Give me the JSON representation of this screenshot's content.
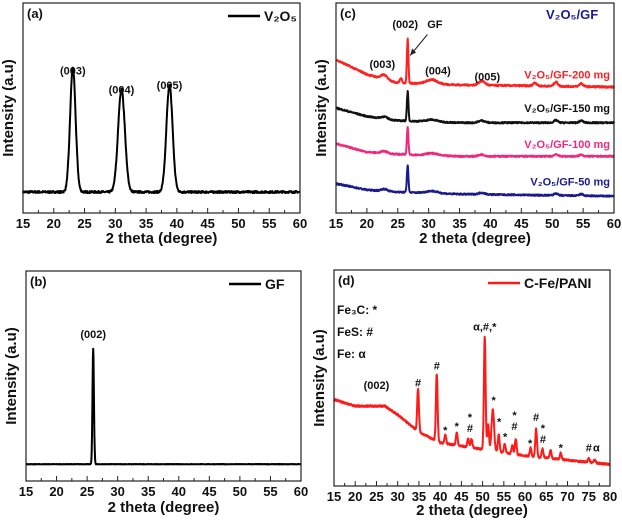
{
  "chart_data": [
    {
      "panel": "(a)",
      "type": "line",
      "xlabel": "2 theta (degree)",
      "ylabel": "Intensity (a.u)",
      "xlim": [
        15,
        60
      ],
      "xticks": [
        15,
        20,
        25,
        30,
        35,
        40,
        45,
        50,
        55,
        60
      ],
      "ylim": [
        0,
        1
      ],
      "grid": false,
      "legend": {
        "placement": "top-right",
        "entries": [
          "V₂O₅"
        ]
      },
      "series": [
        {
          "name": "V₂O₅",
          "color": "#000000",
          "baseline": [
            [
              15,
              0.1
            ],
            [
              60,
              0.1
            ]
          ],
          "peaks": [
            {
              "x": 23.1,
              "y": 0.59,
              "w": 0.45
            },
            {
              "x": 31.0,
              "y": 0.49,
              "w": 0.55
            },
            {
              "x": 38.8,
              "y": 0.51,
              "w": 0.5
            }
          ],
          "noise": 0.01
        }
      ],
      "annotations": [
        {
          "text": "(003)",
          "x": 23.1,
          "y": 0.66
        },
        {
          "text": "(004)",
          "x": 31.0,
          "y": 0.57
        },
        {
          "text": "(005)",
          "x": 38.8,
          "y": 0.59
        }
      ]
    },
    {
      "panel": "(b)",
      "type": "line",
      "xlabel": "2 theta (degree)",
      "ylabel": "Intensity (a.u)",
      "xlim": [
        15,
        60
      ],
      "xticks": [
        15,
        20,
        25,
        30,
        35,
        40,
        45,
        50,
        55,
        60
      ],
      "ylim": [
        0,
        1
      ],
      "grid": false,
      "legend": {
        "placement": "top-right",
        "entries": [
          "GF"
        ]
      },
      "series": [
        {
          "name": "GF",
          "color": "#000000",
          "baseline": [
            [
              15,
              0.08
            ],
            [
              60,
              0.08
            ]
          ],
          "peaks": [
            {
              "x": 26.0,
              "y": 0.55,
              "w": 0.12
            }
          ],
          "noise": 0.002
        }
      ],
      "annotations": [
        {
          "text": "(002)",
          "x": 26.0,
          "y": 0.68
        }
      ]
    },
    {
      "panel": "(c)",
      "type": "line",
      "title": "V₂O₅/GF",
      "title_color": "#1a1a9a",
      "xlabel": "2 theta (degree)",
      "ylabel": "Intensity (a.u)",
      "xlim": [
        15,
        60
      ],
      "xticks": [
        15,
        20,
        25,
        30,
        35,
        40,
        45,
        50,
        55,
        60
      ],
      "ylim": [
        0,
        1
      ],
      "grid": false,
      "series": [
        {
          "name": "V₂O₅/GF-200 mg",
          "color": "#ff2020",
          "label_y": 0.64,
          "baseline": [
            [
              15,
              0.73
            ],
            [
              20,
              0.66
            ],
            [
              25,
              0.62
            ],
            [
              35,
              0.61
            ],
            [
              60,
              0.6
            ]
          ],
          "peaks": [
            {
              "x": 22.8,
              "y": 0.02,
              "w": 0.5
            },
            {
              "x": 25.5,
              "y": 0.02,
              "w": 0.2
            },
            {
              "x": 26.6,
              "y": 0.21,
              "w": 0.12
            },
            {
              "x": 30.5,
              "y": 0.02,
              "w": 0.9
            },
            {
              "x": 38.6,
              "y": 0.02,
              "w": 0.5
            },
            {
              "x": 47.2,
              "y": 0.015,
              "w": 0.3
            },
            {
              "x": 50.6,
              "y": 0.02,
              "w": 0.3
            },
            {
              "x": 54.7,
              "y": 0.015,
              "w": 0.3
            }
          ],
          "noise": 0.008
        },
        {
          "name": "V₂O₅/GF-150 mg",
          "color": "#111111",
          "label_y": 0.48,
          "baseline": [
            [
              15,
              0.5
            ],
            [
              20,
              0.46
            ],
            [
              25,
              0.44
            ],
            [
              35,
              0.43
            ],
            [
              60,
              0.43
            ]
          ],
          "peaks": [
            {
              "x": 22.8,
              "y": 0.01,
              "w": 0.5
            },
            {
              "x": 26.6,
              "y": 0.14,
              "w": 0.12
            },
            {
              "x": 30.5,
              "y": 0.01,
              "w": 0.9
            },
            {
              "x": 38.6,
              "y": 0.01,
              "w": 0.5
            },
            {
              "x": 50.6,
              "y": 0.012,
              "w": 0.3
            },
            {
              "x": 54.7,
              "y": 0.01,
              "w": 0.3
            }
          ],
          "noise": 0.007
        },
        {
          "name": "V₂O₅/GF-100 mg",
          "color": "#f0287c",
          "label_y": 0.31,
          "baseline": [
            [
              15,
              0.33
            ],
            [
              20,
              0.29
            ],
            [
              25,
              0.28
            ],
            [
              35,
              0.27
            ],
            [
              60,
              0.27
            ]
          ],
          "peaks": [
            {
              "x": 22.8,
              "y": 0.01,
              "w": 0.5
            },
            {
              "x": 26.6,
              "y": 0.13,
              "w": 0.12
            },
            {
              "x": 30.5,
              "y": 0.01,
              "w": 0.9
            },
            {
              "x": 38.6,
              "y": 0.008,
              "w": 0.5
            },
            {
              "x": 50.6,
              "y": 0.01,
              "w": 0.3
            },
            {
              "x": 54.7,
              "y": 0.008,
              "w": 0.3
            }
          ],
          "noise": 0.007
        },
        {
          "name": "V₂O₅/GF-50 mg",
          "color": "#1a1a8c",
          "label_y": 0.13,
          "baseline": [
            [
              15,
              0.14
            ],
            [
              20,
              0.11
            ],
            [
              25,
              0.1
            ],
            [
              35,
              0.09
            ],
            [
              60,
              0.08
            ]
          ],
          "peaks": [
            {
              "x": 22.8,
              "y": 0.01,
              "w": 0.5
            },
            {
              "x": 26.6,
              "y": 0.13,
              "w": 0.12
            },
            {
              "x": 30.5,
              "y": 0.01,
              "w": 0.9
            },
            {
              "x": 38.6,
              "y": 0.008,
              "w": 0.5
            },
            {
              "x": 50.6,
              "y": 0.01,
              "w": 0.3
            },
            {
              "x": 54.7,
              "y": 0.008,
              "w": 0.3
            }
          ],
          "noise": 0.007
        }
      ],
      "annotations": [
        {
          "text": "(002)",
          "x": 26.2,
          "y": 0.88
        },
        {
          "text": "GF",
          "x": 31.0,
          "y": 0.88
        },
        {
          "text": "(003)",
          "x": 22.5,
          "y": 0.69
        },
        {
          "text": "(004)",
          "x": 31.5,
          "y": 0.66
        },
        {
          "text": "(005)",
          "x": 39.5,
          "y": 0.63
        }
      ],
      "arrow": {
        "from": [
          29.8,
          0.85
        ],
        "to": [
          27.0,
          0.75
        ]
      }
    },
    {
      "panel": "(d)",
      "type": "line",
      "xlabel": "2 theta (degree)",
      "ylabel": "Intensity (a.u)",
      "xlim": [
        15,
        80
      ],
      "xticks": [
        15,
        20,
        25,
        30,
        35,
        40,
        45,
        50,
        55,
        60,
        65,
        70,
        75,
        80
      ],
      "ylim": [
        0,
        1
      ],
      "grid": false,
      "legend": {
        "placement": "top-right",
        "entries": [
          "C-Fe/PANI"
        ]
      },
      "phase_key": [
        "Fe₃C: *",
        "FeS: #",
        "Fe: α"
      ],
      "series": [
        {
          "name": "C-Fe/PANI",
          "color": "#ff1a1a",
          "baseline": [
            [
              15,
              0.4
            ],
            [
              20,
              0.37
            ],
            [
              27,
              0.37
            ],
            [
              30,
              0.33
            ],
            [
              35,
              0.25
            ],
            [
              40,
              0.2
            ],
            [
              50,
              0.17
            ],
            [
              60,
              0.14
            ],
            [
              70,
              0.12
            ],
            [
              80,
              0.1
            ]
          ],
          "peaks": [
            {
              "x": 34.8,
              "y": 0.2,
              "w": 0.2
            },
            {
              "x": 39.2,
              "y": 0.31,
              "w": 0.2
            },
            {
              "x": 41.2,
              "y": 0.04,
              "w": 0.2
            },
            {
              "x": 43.9,
              "y": 0.06,
              "w": 0.2
            },
            {
              "x": 46.6,
              "y": 0.04,
              "w": 0.2
            },
            {
              "x": 47.4,
              "y": 0.04,
              "w": 0.2
            },
            {
              "x": 50.5,
              "y": 0.52,
              "w": 0.2
            },
            {
              "x": 51.3,
              "y": 0.12,
              "w": 0.2
            },
            {
              "x": 52.4,
              "y": 0.19,
              "w": 0.3
            },
            {
              "x": 53.8,
              "y": 0.08,
              "w": 0.2
            },
            {
              "x": 55.2,
              "y": 0.04,
              "w": 0.2
            },
            {
              "x": 57.0,
              "y": 0.04,
              "w": 0.2
            },
            {
              "x": 57.8,
              "y": 0.07,
              "w": 0.2
            },
            {
              "x": 61.3,
              "y": 0.04,
              "w": 0.2
            },
            {
              "x": 62.6,
              "y": 0.13,
              "w": 0.2
            },
            {
              "x": 64.1,
              "y": 0.04,
              "w": 0.2
            },
            {
              "x": 66.0,
              "y": 0.04,
              "w": 0.2
            },
            {
              "x": 68.4,
              "y": 0.03,
              "w": 0.2
            },
            {
              "x": 75.0,
              "y": 0.02,
              "w": 0.2
            },
            {
              "x": 76.4,
              "y": 0.015,
              "w": 0.2
            }
          ],
          "noise": 0.008
        }
      ],
      "annotations": [
        {
          "text": "(002)",
          "x": 25.0,
          "y": 0.45
        },
        {
          "text": "#",
          "x": 34.8,
          "y": 0.46
        },
        {
          "text": "#",
          "x": 39.2,
          "y": 0.54
        },
        {
          "text": "α,#,*",
          "x": 50.5,
          "y": 0.72
        },
        {
          "text": "*",
          "x": 41.2,
          "y": 0.24
        },
        {
          "text": "*",
          "x": 43.9,
          "y": 0.26
        },
        {
          "text": "*",
          "x": 47.0,
          "y": 0.3
        },
        {
          "text": "#",
          "x": 47.0,
          "y": 0.25
        },
        {
          "text": "*",
          "x": 52.6,
          "y": 0.38
        },
        {
          "text": "*",
          "x": 53.9,
          "y": 0.28
        },
        {
          "text": "*",
          "x": 55.3,
          "y": 0.21
        },
        {
          "text": "*",
          "x": 57.5,
          "y": 0.31
        },
        {
          "text": "#",
          "x": 57.5,
          "y": 0.26
        },
        {
          "text": "#",
          "x": 62.6,
          "y": 0.3
        },
        {
          "text": "*",
          "x": 61.2,
          "y": 0.18
        },
        {
          "text": "*",
          "x": 64.2,
          "y": 0.25
        },
        {
          "text": "#",
          "x": 64.2,
          "y": 0.2
        },
        {
          "text": "*",
          "x": 68.4,
          "y": 0.16
        },
        {
          "text": "#",
          "x": 75.0,
          "y": 0.16
        },
        {
          "text": "α",
          "x": 76.8,
          "y": 0.16
        }
      ]
    }
  ]
}
